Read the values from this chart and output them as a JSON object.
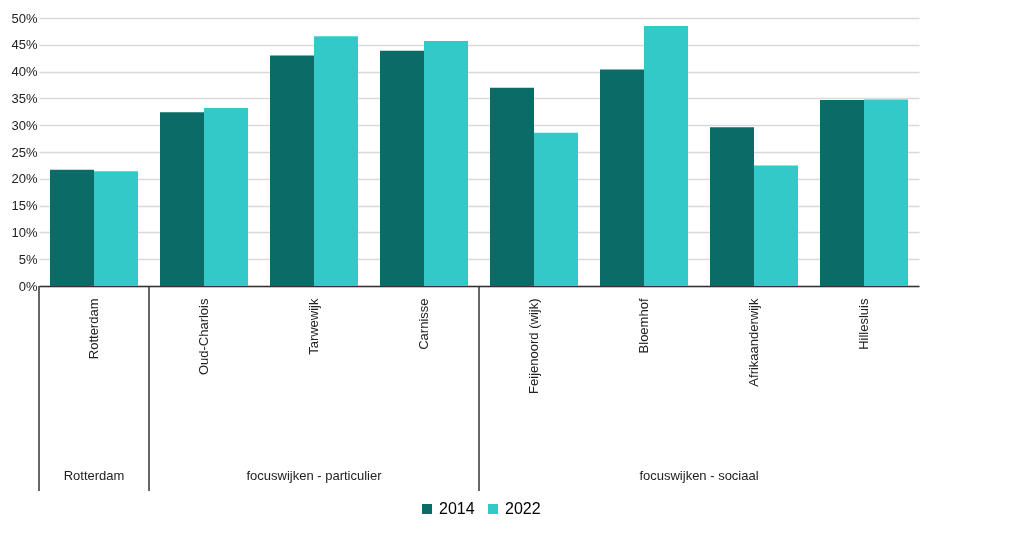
{
  "chart_data": {
    "type": "bar",
    "categories": [
      "Rotterdam",
      "Oud-Charlois",
      "Tarwewijk",
      "Carnisse",
      "Feijenoord (wijk)",
      "Bloemhof",
      "Afrikaanderwijk",
      "Hillesluis"
    ],
    "series": [
      {
        "name": "2014",
        "color": "#0b6b66",
        "values": [
          21.7,
          32.4,
          43.0,
          43.9,
          37.0,
          40.4,
          29.6,
          34.7
        ]
      },
      {
        "name": "2022",
        "color": "#33c9c9",
        "values": [
          21.4,
          33.2,
          46.6,
          45.7,
          28.6,
          48.5,
          22.5,
          34.8
        ]
      }
    ],
    "ylim": [
      0,
      50
    ],
    "yticks": [
      {
        "value": 0,
        "label": "0%"
      },
      {
        "value": 5,
        "label": "5%"
      },
      {
        "value": 10,
        "label": "10%"
      },
      {
        "value": 15,
        "label": "15%"
      },
      {
        "value": 20,
        "label": "20%"
      },
      {
        "value": 25,
        "label": "25%"
      },
      {
        "value": 30,
        "label": "30%"
      },
      {
        "value": 35,
        "label": "35%"
      },
      {
        "value": 40,
        "label": "40%"
      },
      {
        "value": 45,
        "label": "45%"
      },
      {
        "value": 50,
        "label": "50%"
      }
    ],
    "annotations": [
      "Rotterdam",
      "focuswijken - particulier",
      "focuswijken - sociaal"
    ],
    "grid": "y",
    "legend": "bottom"
  }
}
